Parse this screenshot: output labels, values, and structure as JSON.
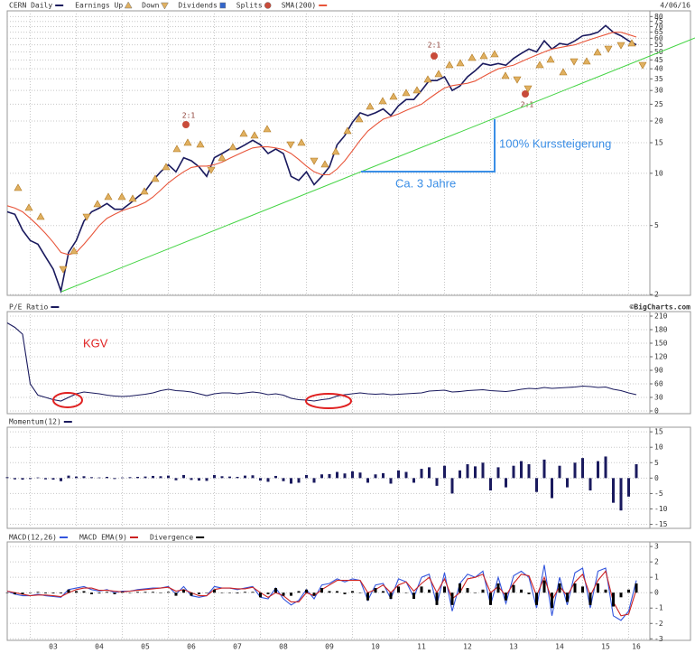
{
  "chart_data": [
    {
      "type": "line",
      "log_scale": true,
      "grid": true,
      "date": "4/06/16",
      "events": [
        {
          "name": "Earnings Up",
          "color": "#e0b060"
        },
        {
          "name": "Down",
          "color": "#e0b060"
        },
        {
          "name": "Dividends",
          "color": "#3366cc"
        },
        {
          "name": "Splits",
          "color": "#c84b3a"
        }
      ],
      "split_labels": [
        "2:1",
        "2:1",
        "2:1"
      ],
      "annotations": [
        "100% Kurssteigerung",
        "Ca. 3 Jahre"
      ],
      "ylim": [
        1.98,
        86.3
      ],
      "yticks": [
        80,
        75,
        70,
        65,
        60,
        55,
        50,
        45,
        40,
        35,
        30,
        25,
        20,
        15,
        10,
        5,
        2
      ],
      "series": [
        {
          "name": "CERN Daily",
          "color": "#1a1a5e",
          "values": [
            6.0,
            5.8,
            4.7,
            4.1,
            3.9,
            3.3,
            2.8,
            2.1,
            3.5,
            4.1,
            5.3,
            6.0,
            6.3,
            6.7,
            6.2,
            6.2,
            6.7,
            7.3,
            7.9,
            9.1,
            10.2,
            11.2,
            10.2,
            12.3,
            11.8,
            10.9,
            9.6,
            12.3,
            13.0,
            13.8,
            13.8,
            14.6,
            15.5,
            14.6,
            13.0,
            13.8,
            13.0,
            9.6,
            9.1,
            10.2,
            8.6,
            9.6,
            10.9,
            14.6,
            16.5,
            19.7,
            22.3,
            21.5,
            22.3,
            23.5,
            21.5,
            24.5,
            26.6,
            26.6,
            30.0,
            34.2,
            34.2,
            36.0,
            30.0,
            31.8,
            36.0,
            39.0,
            42.9,
            41.9,
            42.9,
            41.9,
            45.9,
            49,
            52,
            50,
            58,
            52,
            56,
            55,
            58,
            62,
            63,
            65,
            71,
            65,
            62,
            58,
            55
          ]
        },
        {
          "name": "SMA(200)",
          "color": "#e8553a",
          "values": [
            6.5,
            6.3,
            6.0,
            5.5,
            5.0,
            4.5,
            4.0,
            3.5,
            3.4,
            3.5,
            3.9,
            4.4,
            5.0,
            5.5,
            5.8,
            6.1,
            6.3,
            6.5,
            6.8,
            7.3,
            8.0,
            8.8,
            9.5,
            10.2,
            10.8,
            11.0,
            11.0,
            11.2,
            11.6,
            12.2,
            12.8,
            13.4,
            14.0,
            14.2,
            14.2,
            14.0,
            13.7,
            13.0,
            12.0,
            11.0,
            10.2,
            9.8,
            9.8,
            10.6,
            11.8,
            13.5,
            15.5,
            17.5,
            19.0,
            20.5,
            21.2,
            22.0,
            23.0,
            24.0,
            25.0,
            27.0,
            29.0,
            31.0,
            32.0,
            32.5,
            33.0,
            34.0,
            36.0,
            38,
            40,
            41,
            42,
            44,
            46,
            48,
            50,
            52,
            53,
            54,
            55,
            57,
            59,
            61,
            63,
            65,
            65,
            63,
            61
          ]
        }
      ]
    },
    {
      "type": "line",
      "grid": true,
      "source": "©BigCharts.com",
      "annotations": [
        "KGV"
      ],
      "ylim": [
        -6,
        220
      ],
      "yticks": [
        210,
        180,
        150,
        120,
        90,
        60,
        30,
        0
      ],
      "series": [
        {
          "name": "P/E Ratio",
          "color": "#1a1a5e",
          "values": [
            195,
            185,
            170,
            60,
            35,
            30,
            25,
            22,
            30,
            38,
            42,
            40,
            38,
            35,
            33,
            32,
            33,
            35,
            37,
            40,
            45,
            48,
            45,
            44,
            42,
            38,
            34,
            38,
            40,
            40,
            38,
            40,
            42,
            40,
            36,
            38,
            35,
            28,
            25,
            24,
            22,
            25,
            27,
            33,
            36,
            38,
            40,
            38,
            37,
            38,
            36,
            37,
            38,
            39,
            40,
            44,
            45,
            46,
            42,
            43,
            45,
            46,
            47,
            45,
            44,
            43,
            45,
            48,
            50,
            49,
            52,
            50,
            51,
            52,
            53,
            55,
            54,
            52,
            53,
            48,
            45,
            40,
            36
          ]
        }
      ]
    },
    {
      "type": "bar",
      "grid": true,
      "ylim": [
        -16.3,
        16.5
      ],
      "yticks": [
        15,
        10,
        5,
        0,
        -5,
        -10,
        -15
      ],
      "series": [
        {
          "name": "Momentum(12)",
          "color": "#1a1a5e",
          "values": [
            0.3,
            -0.4,
            -0.5,
            -0.3,
            0.2,
            -0.4,
            -0.5,
            -1.0,
            0.8,
            0.5,
            0.6,
            0.3,
            0.2,
            0.4,
            -0.3,
            0.2,
            0.3,
            0.4,
            0.5,
            0.7,
            0.6,
            0.8,
            -0.7,
            1.0,
            -0.6,
            -0.8,
            -0.9,
            1.0,
            0.6,
            0.5,
            0.4,
            0.8,
            0.9,
            -0.8,
            -1.2,
            0.7,
            -1.0,
            -1.8,
            -1.5,
            1.0,
            -1.5,
            1.2,
            1.3,
            2.0,
            1.5,
            2.2,
            1.8,
            -1.5,
            1.2,
            1.6,
            -1.8,
            2.5,
            2.0,
            -1.5,
            3.0,
            3.5,
            -2.5,
            4.0,
            -5.0,
            2.5,
            4.5,
            3.8,
            5.0,
            -4.0,
            3.5,
            -3.0,
            4.0,
            5.5,
            4.5,
            -4.5,
            6.0,
            -6.5,
            4.0,
            -3.0,
            5.0,
            6.5,
            -4.0,
            5.5,
            7.0,
            -8.0,
            -10.5,
            -6.0,
            4.5
          ]
        }
      ]
    },
    {
      "type": "line",
      "grid": true,
      "ylim": [
        -3.1,
        3.3
      ],
      "yticks": [
        3,
        2,
        1,
        0,
        -1,
        -2,
        -3
      ],
      "categories": [
        null,
        null,
        null,
        null,
        null,
        null,
        "03",
        null,
        null,
        null,
        null,
        null,
        "04",
        null,
        null,
        null,
        null,
        null,
        "05",
        null,
        null,
        null,
        null,
        null,
        "06",
        null,
        null,
        null,
        null,
        null,
        "07",
        null,
        null,
        null,
        null,
        null,
        "08",
        null,
        null,
        null,
        null,
        null,
        "09",
        null,
        null,
        null,
        null,
        null,
        "10",
        null,
        null,
        null,
        null,
        null,
        "11",
        null,
        null,
        null,
        null,
        null,
        "12",
        null,
        null,
        null,
        null,
        null,
        "13",
        null,
        null,
        null,
        null,
        null,
        "14",
        null,
        null,
        null,
        null,
        null,
        "15",
        null,
        null,
        null,
        "16"
      ],
      "series": [
        {
          "name": "MACD(12,26)",
          "color": "#3355dd",
          "values": [
            0.1,
            -0.1,
            -0.2,
            -0.2,
            -0.1,
            -0.2,
            -0.25,
            -0.3,
            0.2,
            0.3,
            0.4,
            0.2,
            0.1,
            0.2,
            0.0,
            0.1,
            0.1,
            0.2,
            0.25,
            0.3,
            0.3,
            0.4,
            -0.1,
            0.4,
            -0.2,
            -0.3,
            -0.2,
            0.4,
            0.3,
            0.3,
            0.2,
            0.3,
            0.4,
            -0.3,
            -0.4,
            0.3,
            -0.4,
            -0.8,
            -0.5,
            0.2,
            -0.4,
            0.5,
            0.6,
            0.9,
            0.7,
            0.9,
            0.8,
            -0.5,
            0.5,
            0.6,
            -0.4,
            0.9,
            0.7,
            -0.3,
            1.0,
            1.2,
            -0.8,
            1.3,
            -1.2,
            0.6,
            1.2,
            1.0,
            1.4,
            -0.8,
            1.0,
            -0.7,
            1.1,
            1.4,
            1.0,
            -1.0,
            1.8,
            -1.5,
            1.0,
            -0.8,
            1.3,
            1.6,
            -1.0,
            1.4,
            1.6,
            -1.5,
            -1.8,
            -1.2,
            0.8
          ]
        },
        {
          "name": "MACD EMA(9)",
          "color": "#cc2222",
          "values": [
            0.1,
            0.0,
            -0.1,
            -0.2,
            -0.15,
            -0.15,
            -0.2,
            -0.25,
            0.0,
            0.2,
            0.3,
            0.3,
            0.15,
            0.15,
            0.1,
            0.05,
            0.1,
            0.15,
            0.2,
            0.25,
            0.3,
            0.35,
            0.1,
            0.2,
            0.0,
            -0.2,
            -0.2,
            0.2,
            0.3,
            0.3,
            0.25,
            0.25,
            0.35,
            0.0,
            -0.3,
            0.0,
            -0.2,
            -0.6,
            -0.6,
            0.0,
            -0.2,
            0.2,
            0.5,
            0.8,
            0.8,
            0.8,
            0.8,
            0.0,
            0.2,
            0.5,
            0.0,
            0.5,
            0.7,
            0.1,
            0.6,
            1.0,
            0.0,
            0.9,
            -0.4,
            0.0,
            0.9,
            1.0,
            1.2,
            0.0,
            0.4,
            -0.2,
            0.6,
            1.2,
            1.1,
            -0.2,
            1.0,
            -0.5,
            0.4,
            -0.2,
            0.7,
            1.2,
            -0.2,
            0.8,
            1.4,
            -0.6,
            -1.5,
            -1.4,
            0.2
          ]
        },
        {
          "name": "Divergence",
          "color": "#000000",
          "type": "bar",
          "values": [
            0.0,
            -0.1,
            -0.1,
            0.0,
            0.05,
            -0.05,
            -0.05,
            -0.05,
            0.2,
            0.1,
            0.1,
            -0.1,
            -0.05,
            0.05,
            -0.1,
            0.05,
            0.0,
            0.05,
            0.05,
            0.05,
            0.0,
            0.05,
            -0.2,
            0.2,
            -0.2,
            -0.1,
            0.0,
            0.2,
            0.0,
            0.0,
            -0.05,
            0.05,
            0.05,
            -0.3,
            -0.1,
            0.3,
            -0.2,
            -0.2,
            0.1,
            0.2,
            -0.2,
            0.3,
            0.1,
            0.1,
            -0.1,
            0.1,
            0.0,
            -0.5,
            0.3,
            0.1,
            -0.4,
            0.4,
            0.0,
            -0.4,
            0.4,
            0.2,
            -0.8,
            0.4,
            -0.8,
            0.6,
            0.3,
            0.0,
            0.2,
            -0.8,
            0.6,
            -0.5,
            0.5,
            0.2,
            -0.1,
            -0.8,
            0.8,
            -1.0,
            0.6,
            -0.6,
            0.6,
            0.4,
            -0.8,
            0.6,
            0.2,
            -0.9,
            -0.3,
            0.2,
            0.6
          ]
        }
      ]
    }
  ]
}
